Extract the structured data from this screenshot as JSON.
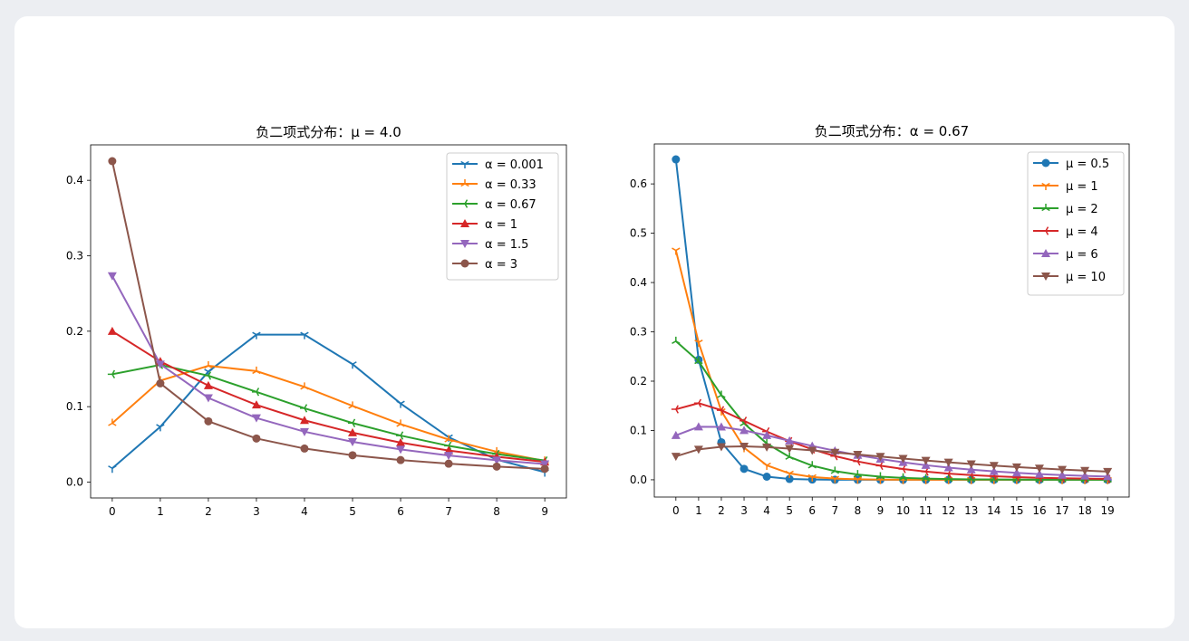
{
  "chart_data": [
    {
      "type": "line",
      "title": "负二项式分布：μ = 4.0",
      "xlabel": "",
      "ylabel": "",
      "x": [
        0,
        1,
        2,
        3,
        4,
        5,
        6,
        7,
        8,
        9
      ],
      "xlim": [
        -0.45,
        9.45
      ],
      "ylim": [
        -0.021,
        0.447
      ],
      "xticks": [
        "0",
        "1",
        "2",
        "3",
        "4",
        "5",
        "6",
        "7",
        "8",
        "9"
      ],
      "yticks": [
        0.0,
        0.1,
        0.2,
        0.3,
        0.4
      ],
      "ytick_labels": [
        "0.0",
        "0.1",
        "0.2",
        "0.3",
        "0.4"
      ],
      "grid": false,
      "legend_position": "top-right",
      "series": [
        {
          "name": "α = 0.001",
          "color": "#1f77b4",
          "marker": "tri_down",
          "values": [
            0.0183,
            0.0733,
            0.1465,
            0.1954,
            0.1954,
            0.1563,
            0.1042,
            0.0595,
            0.0298,
            0.0132
          ]
        },
        {
          "name": "α = 0.33",
          "color": "#ff7f0e",
          "marker": "tri_up",
          "values": [
            0.078,
            0.1345,
            0.1542,
            0.1471,
            0.1262,
            0.101,
            0.0769,
            0.0564,
            0.0403,
            0.0281
          ]
        },
        {
          "name": "α = 0.67",
          "color": "#2ca02c",
          "marker": "tri_left",
          "values": [
            0.143,
            0.1554,
            0.1411,
            0.1196,
            0.0979,
            0.0783,
            0.0617,
            0.0481,
            0.0372,
            0.0286
          ]
        },
        {
          "name": "α = 1",
          "color": "#d62728",
          "marker": "triangle_up",
          "values": [
            0.2,
            0.16,
            0.128,
            0.1024,
            0.0819,
            0.0655,
            0.0524,
            0.0419,
            0.0336,
            0.0268
          ]
        },
        {
          "name": "α = 1.5",
          "color": "#9467bd",
          "marker": "triangle_down",
          "values": [
            0.2733,
            0.1562,
            0.1116,
            0.085,
            0.0668,
            0.0534,
            0.0433,
            0.0353,
            0.029,
            0.024
          ]
        },
        {
          "name": "α = 3",
          "color": "#8c564b",
          "marker": "circle",
          "values": [
            0.4254,
            0.1309,
            0.0806,
            0.0578,
            0.0445,
            0.0356,
            0.0292,
            0.0244,
            0.0206,
            0.0176
          ]
        }
      ]
    },
    {
      "type": "line",
      "title": "负二项式分布：α = 0.67",
      "xlabel": "",
      "ylabel": "",
      "x": [
        0,
        1,
        2,
        3,
        4,
        5,
        6,
        7,
        8,
        9,
        10,
        11,
        12,
        13,
        14,
        15,
        16,
        17,
        18,
        19
      ],
      "xlim": [
        -0.95,
        19.95
      ],
      "ylim": [
        -0.035,
        0.681
      ],
      "xticks": [
        "0",
        "1",
        "2",
        "3",
        "4",
        "5",
        "6",
        "7",
        "8",
        "9",
        "10",
        "11",
        "12",
        "13",
        "14",
        "15",
        "16",
        "17",
        "18",
        "19"
      ],
      "yticks": [
        0.0,
        0.1,
        0.2,
        0.3,
        0.4,
        0.5,
        0.6
      ],
      "ytick_labels": [
        "0.0",
        "0.1",
        "0.2",
        "0.3",
        "0.4",
        "0.5",
        "0.6"
      ],
      "grid": false,
      "legend_position": "top-right",
      "series": [
        {
          "name": "μ = 0.5",
          "color": "#1f77b4",
          "marker": "circle",
          "values": [
            0.6497,
            0.2433,
            0.0761,
            0.0222,
            0.0063,
            0.0017,
            0.0005,
            0.0001,
            0,
            0,
            0,
            0,
            0,
            0,
            0,
            0,
            0,
            0,
            0,
            0
          ]
        },
        {
          "name": "μ = 1",
          "color": "#ff7f0e",
          "marker": "tri_down",
          "values": [
            0.4652,
            0.2786,
            0.1393,
            0.0651,
            0.0293,
            0.0129,
            0.0056,
            0.0024,
            0.001,
            0.0004,
            0.0002,
            0.0001,
            0,
            0,
            0,
            0,
            0,
            0,
            0,
            0
          ]
        },
        {
          "name": "μ = 2",
          "color": "#2ca02c",
          "marker": "tri_up",
          "values": [
            0.2811,
            0.2403,
            0.1715,
            0.1143,
            0.0735,
            0.0463,
            0.0287,
            0.0176,
            0.0107,
            0.0064,
            0.0039,
            0.0023,
            0.0014,
            0.0008,
            0.0005,
            0.0003,
            0.0002,
            0.0001,
            0.0001,
            0
          ]
        },
        {
          "name": "μ = 4",
          "color": "#d62728",
          "marker": "tri_left",
          "values": [
            0.143,
            0.1554,
            0.1411,
            0.1196,
            0.0979,
            0.0783,
            0.0617,
            0.0481,
            0.0372,
            0.0286,
            0.0219,
            0.0166,
            0.0126,
            0.0095,
            0.0072,
            0.0054,
            0.0041,
            0.003,
            0.0023,
            0.0017
          ]
        },
        {
          "name": "μ = 6",
          "color": "#9467bd",
          "marker": "triangle_up",
          "values": [
            0.09,
            0.1075,
            0.1073,
            0.1001,
            0.09,
            0.0791,
            0.0686,
            0.0588,
            0.0499,
            0.0422,
            0.0354,
            0.0296,
            0.0247,
            0.0205,
            0.017,
            0.0141,
            0.0116,
            0.0096,
            0.0079,
            0.0065
          ]
        },
        {
          "name": "μ = 10",
          "color": "#8c564b",
          "marker": "triangle_down",
          "values": [
            0.0475,
            0.0617,
            0.0669,
            0.0678,
            0.0662,
            0.0633,
            0.0596,
            0.0555,
            0.0513,
            0.0471,
            0.043,
            0.0391,
            0.0354,
            0.032,
            0.0288,
            0.0259,
            0.0232,
            0.0208,
            0.0186,
            0.0166
          ]
        }
      ]
    }
  ]
}
